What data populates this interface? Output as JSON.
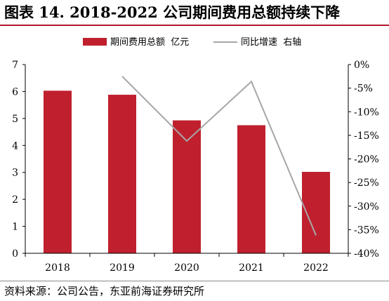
{
  "title": "图表 14. 2018-2022 公司期间费用总额持续下降",
  "source": "资料来源：公司公告，东亚前海证券研究所",
  "colors": {
    "bar": "#c0202e",
    "line": "#a6a6a6",
    "axis": "#000000",
    "title_rule": "#b0182a"
  },
  "chart_data": {
    "type": "bar",
    "categories": [
      "2018",
      "2019",
      "2020",
      "2021",
      "2022"
    ],
    "series": [
      {
        "name": "期间费用总额  亿元",
        "type": "bar",
        "axis": "left",
        "values": [
          6.03,
          5.88,
          4.93,
          4.75,
          3.02
        ]
      },
      {
        "name": "同比增速  右轴",
        "type": "line",
        "axis": "right",
        "values": [
          null,
          -2.5,
          -16.2,
          -3.6,
          -36.2
        ]
      }
    ],
    "y_left": {
      "min": 0,
      "max": 7,
      "step": 1,
      "ticks": [
        "0",
        "1",
        "2",
        "3",
        "4",
        "5",
        "6",
        "7"
      ]
    },
    "y_right": {
      "min": -40,
      "max": 0,
      "step": 5,
      "ticks": [
        "0%",
        "-5%",
        "-10%",
        "-15%",
        "-20%",
        "-25%",
        "-30%",
        "-35%",
        "-40%"
      ]
    },
    "legend_position": "top-center",
    "grid": false
  }
}
